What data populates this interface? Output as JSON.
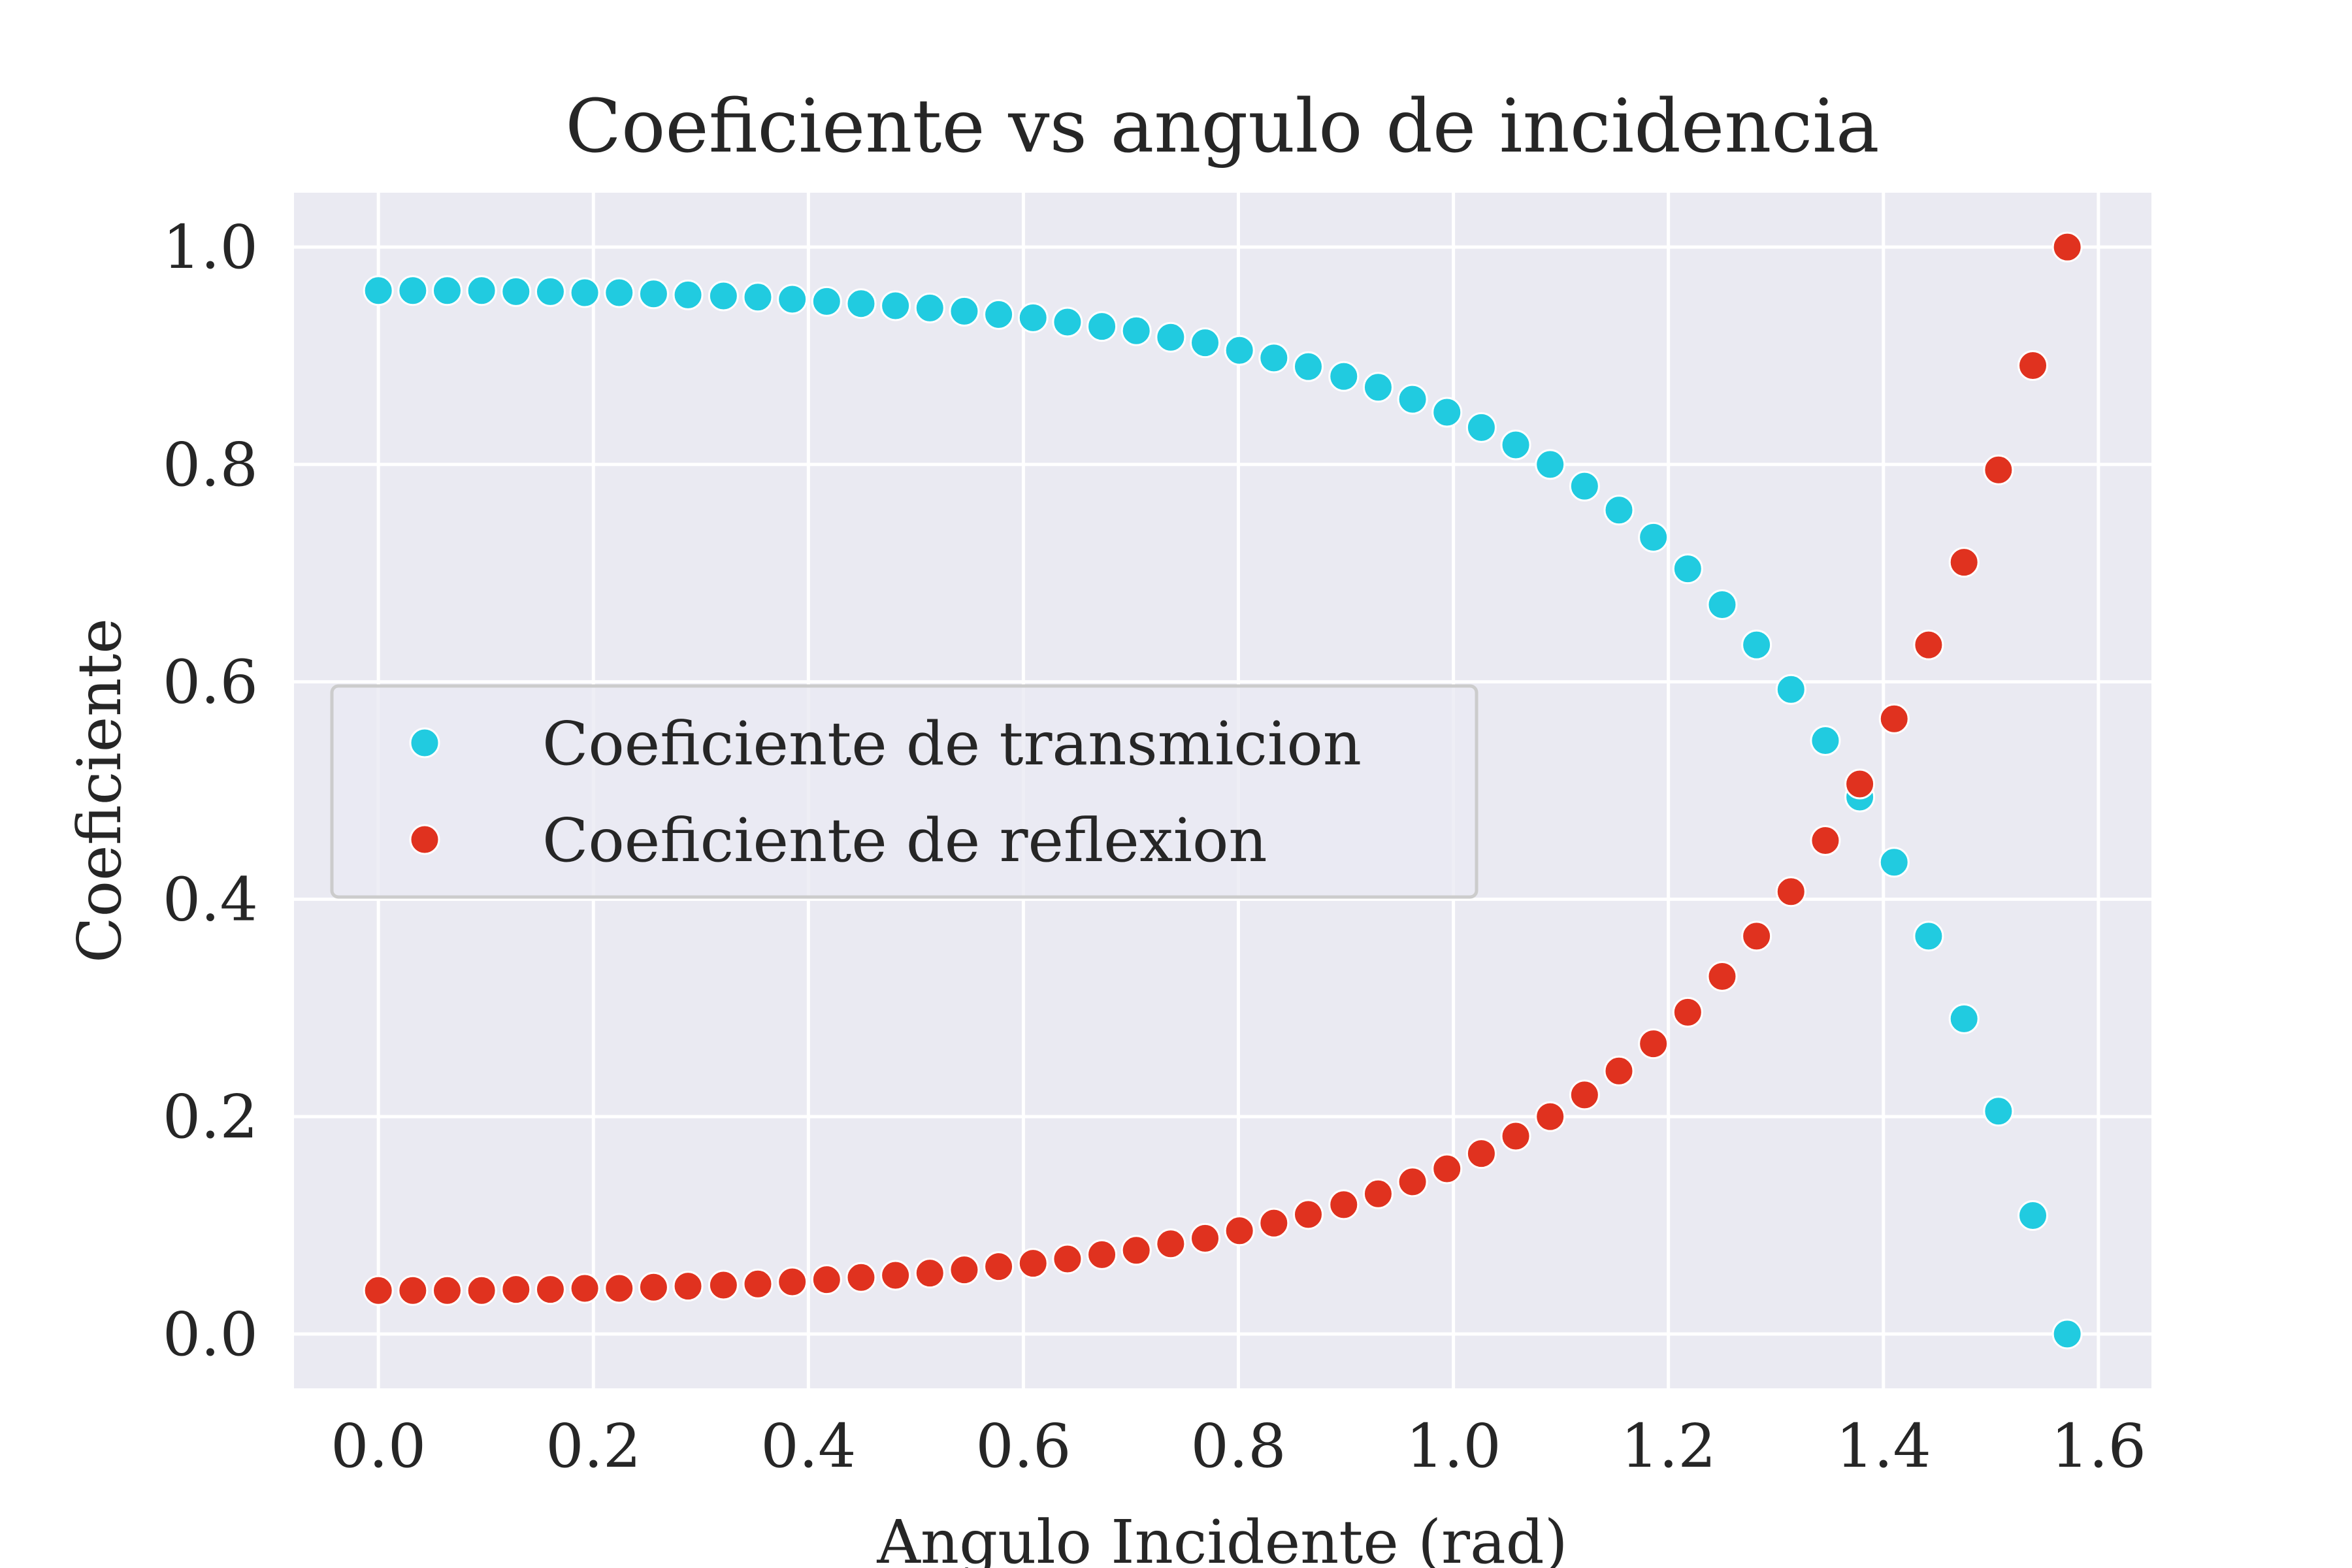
{
  "chart_data": {
    "type": "scatter",
    "title": "Coeficiente vs angulo de incidencia",
    "xlabel": "Angulo Incidente (rad)",
    "ylabel": "Coeficiente",
    "xlim": [
      -0.0785,
      1.6493
    ],
    "ylim": [
      -0.05,
      1.05
    ],
    "xticks": [
      0.0,
      0.2,
      0.4,
      0.6,
      0.8,
      1.0,
      1.2,
      1.4,
      1.6
    ],
    "xtick_labels": [
      "0.0",
      "0.2",
      "0.4",
      "0.6",
      "0.8",
      "1.0",
      "1.2",
      "1.4",
      "1.6"
    ],
    "yticks": [
      0.0,
      0.2,
      0.4,
      0.6,
      0.8,
      1.0
    ],
    "ytick_labels": [
      "0.0",
      "0.2",
      "0.4",
      "0.6",
      "0.8",
      "1.0"
    ],
    "grid": true,
    "legend_position": "center-left",
    "background": "#eaeaf2",
    "x": [
      0.0,
      0.032,
      0.064,
      0.096,
      0.128,
      0.16,
      0.192,
      0.224,
      0.256,
      0.288,
      0.321,
      0.353,
      0.385,
      0.417,
      0.449,
      0.481,
      0.513,
      0.545,
      0.577,
      0.609,
      0.641,
      0.673,
      0.705,
      0.737,
      0.769,
      0.801,
      0.833,
      0.865,
      0.898,
      0.93,
      0.962,
      0.994,
      1.026,
      1.058,
      1.09,
      1.122,
      1.154,
      1.186,
      1.218,
      1.25,
      1.282,
      1.314,
      1.346,
      1.378,
      1.41,
      1.442,
      1.475,
      1.507,
      1.539,
      1.571
    ],
    "series": [
      {
        "name": "Coeficiente de transmicion",
        "color": "#21cbe0",
        "values": [
          0.96,
          0.96,
          0.96,
          0.96,
          0.959,
          0.959,
          0.958,
          0.958,
          0.957,
          0.956,
          0.955,
          0.954,
          0.952,
          0.95,
          0.948,
          0.946,
          0.944,
          0.941,
          0.938,
          0.935,
          0.931,
          0.927,
          0.923,
          0.917,
          0.912,
          0.905,
          0.898,
          0.89,
          0.881,
          0.871,
          0.86,
          0.848,
          0.834,
          0.818,
          0.8,
          0.78,
          0.758,
          0.733,
          0.704,
          0.671,
          0.634,
          0.593,
          0.546,
          0.494,
          0.434,
          0.366,
          0.29,
          0.205,
          0.109,
          0.0
        ]
      },
      {
        "name": "Coeficiente de reflexion",
        "color": "#e0321f",
        "values": [
          0.04,
          0.04,
          0.04,
          0.04,
          0.041,
          0.041,
          0.042,
          0.042,
          0.043,
          0.044,
          0.045,
          0.046,
          0.048,
          0.05,
          0.052,
          0.054,
          0.056,
          0.059,
          0.062,
          0.065,
          0.069,
          0.073,
          0.077,
          0.083,
          0.088,
          0.095,
          0.102,
          0.11,
          0.119,
          0.129,
          0.14,
          0.152,
          0.166,
          0.182,
          0.2,
          0.22,
          0.242,
          0.267,
          0.296,
          0.329,
          0.366,
          0.407,
          0.454,
          0.506,
          0.566,
          0.634,
          0.71,
          0.795,
          0.891,
          1.0
        ]
      }
    ]
  }
}
